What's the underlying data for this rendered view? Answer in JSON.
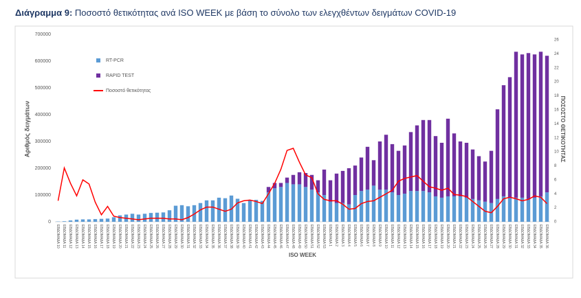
{
  "chart_data": {
    "type": "stacked_bar_line",
    "title_label": "Διάγραμμα 9:",
    "title": "Ποσοστό θετικότητας ανά ISO WEEK με βάση το σύνολο των ελεγχθέντων δειγμάτων COVID-19",
    "ylabel": "Αριθμός δειγμάτων",
    "y2label": "ΠΟΣΟΣΤΟ ΘΕΤΙΚΟΤΗΤΑΣ",
    "xlabel": "ISO WEEK",
    "categories": [
      "ΕΒΔΟΜΑΔΑ 10",
      "ΕΒΔΟΜΑΔΑ 11",
      "ΕΒΔΟΜΑΔΑ 12",
      "ΕΒΔΟΜΑΔΑ 13",
      "ΕΒΔΟΜΑΔΑ 14",
      "ΕΒΔΟΜΑΔΑ 15",
      "ΕΒΔΟΜΑΔΑ 16",
      "ΕΒΔΟΜΑΔΑ 17",
      "ΕΒΔΟΜΑΔΑ 18",
      "ΕΒΔΟΜΑΔΑ 19",
      "ΕΒΔΟΜΑΔΑ 20",
      "ΕΒΔΟΜΑΔΑ 21",
      "ΕΒΔΟΜΑΔΑ 22",
      "ΕΒΔΟΜΑΔΑ 23",
      "ΕΒΔΟΜΑΔΑ 24",
      "ΕΒΔΟΜΑΔΑ 25",
      "ΕΒΔΟΜΑΔΑ 26",
      "ΕΒΔΟΜΑΔΑ 27",
      "ΕΒΔΟΜΑΔΑ 28",
      "ΕΒΔΟΜΑΔΑ 29",
      "ΕΒΔΟΜΑΔΑ 30",
      "ΕΒΔΟΜΑΔΑ 31",
      "ΕΒΔΟΜΑΔΑ 32",
      "ΕΒΔΟΜΑΔΑ 33",
      "ΕΒΔΟΜΑΔΑ 34",
      "ΕΒΔΟΜΑΔΑ 35",
      "ΕΒΔΟΜΑΔΑ 36",
      "ΕΒΔΟΜΑΔΑ 37",
      "ΕΒΔΟΜΑΔΑ 38",
      "ΕΒΔΟΜΑΔΑ 39",
      "ΕΒΔΟΜΑΔΑ 40",
      "ΕΒΔΟΜΑΔΑ 41",
      "ΕΒΔΟΜΑΔΑ 42",
      "ΕΒΔΟΜΑΔΑ 43",
      "ΕΒΔΟΜΑΔΑ 44",
      "ΕΒΔΟΜΑΔΑ 45",
      "ΕΒΔΟΜΑΔΑ 46",
      "ΕΒΔΟΜΑΔΑ 47",
      "ΕΒΔΟΜΑΔΑ 48",
      "ΕΒΔΟΜΑΔΑ 49",
      "ΕΒΔΟΜΑΔΑ 50",
      "ΕΒΔΟΜΑΔΑ 51",
      "ΕΒΔΟΜΑΔΑ 52",
      "ΕΒΔΟΜΑΔΑ 53",
      "ΕΒΔΟΜΑΔΑ 1",
      "ΕΒΔΟΜΑΔΑ 2",
      "ΕΒΔΟΜΑΔΑ 3",
      "ΕΒΔΟΜΑΔΑ 4",
      "ΕΒΔΟΜΑΔΑ 5",
      "ΕΒΔΟΜΑΔΑ 6",
      "ΕΒΔΟΜΑΔΑ 7",
      "ΕΒΔΟΜΑΔΑ 8",
      "ΕΒΔΟΜΑΔΑ 9",
      "ΕΒΔΟΜΑΔΑ 10",
      "ΕΒΔΟΜΑΔΑ 11",
      "ΕΒΔΟΜΑΔΑ 12",
      "ΕΒΔΟΜΑΔΑ 13",
      "ΕΒΔΟΜΑΔΑ 14",
      "ΕΒΔΟΜΑΔΑ 15",
      "ΕΒΔΟΜΑΔΑ 16",
      "ΕΒΔΟΜΑΔΑ 17",
      "ΕΒΔΟΜΑΔΑ 18",
      "ΕΒΔΟΜΑΔΑ 19",
      "ΕΒΔΟΜΑΔΑ 20",
      "ΕΒΔΟΜΑΔΑ 21",
      "ΕΒΔΟΜΑΔΑ 22",
      "ΕΒΔΟΜΑΔΑ 23",
      "ΕΒΔΟΜΑΔΑ 24",
      "ΕΒΔΟΜΑΔΑ 25",
      "ΕΒΔΟΜΑΔΑ 26",
      "ΕΒΔΟΜΑΔΑ 27",
      "ΕΒΔΟΜΑΔΑ 28",
      "ΕΒΔΟΜΑΔΑ 29",
      "ΕΒΔΟΜΑΔΑ 30",
      "ΕΒΔΟΜΑΔΑ 31",
      "ΕΒΔΟΜΑΔΑ 32",
      "ΕΒΔΟΜΑΔΑ 33",
      "ΕΒΔΟΜΑΔΑ 34",
      "ΕΒΔΟΜΑΔΑ 35",
      "ΕΒΔΟΜΑΔΑ 36"
    ],
    "series": [
      {
        "name": "RT-PCR",
        "color": "#5b9bd5",
        "values": [
          1000,
          2000,
          5000,
          8000,
          9000,
          9000,
          10000,
          11000,
          12000,
          17000,
          24000,
          27000,
          30000,
          27000,
          30000,
          33000,
          34000,
          35000,
          43000,
          60000,
          62000,
          58000,
          62000,
          70000,
          80000,
          80000,
          90000,
          88000,
          98000,
          86000,
          70000,
          80000,
          82000,
          78000,
          110000,
          125000,
          130000,
          145000,
          140000,
          140000,
          130000,
          120000,
          110000,
          100000,
          75000,
          70000,
          70000,
          65000,
          100000,
          115000,
          120000,
          135000,
          120000,
          120000,
          110000,
          100000,
          105000,
          115000,
          115000,
          115000,
          110000,
          95000,
          90000,
          95000,
          95000,
          95000,
          90000,
          85000,
          80000,
          75000,
          70000,
          85000,
          95000,
          90000,
          90000,
          90000,
          85000,
          90000,
          95000,
          110000
        ]
      },
      {
        "name": "RAPID TEST",
        "color": "#7030a0",
        "values": [
          0,
          0,
          0,
          0,
          0,
          0,
          0,
          0,
          0,
          0,
          0,
          0,
          0,
          0,
          0,
          0,
          0,
          0,
          0,
          0,
          0,
          0,
          0,
          0,
          0,
          0,
          0,
          0,
          0,
          0,
          0,
          0,
          0,
          0,
          20000,
          20000,
          15000,
          20000,
          35000,
          45000,
          52000,
          55000,
          45000,
          95000,
          80000,
          110000,
          120000,
          135000,
          110000,
          125000,
          160000,
          95000,
          180000,
          205000,
          180000,
          165000,
          180000,
          220000,
          245000,
          265000,
          270000,
          225000,
          205000,
          290000,
          235000,
          205000,
          205000,
          185000,
          165000,
          150000,
          195000,
          335000,
          415000,
          450000,
          545000,
          535000,
          545000,
          535000,
          540000,
          510000
        ]
      },
      {
        "name": "Ποσοστό θετικότητας",
        "color": "#ff0000",
        "axis": "y2",
        "values": [
          3.0,
          7.7,
          5.5,
          3.7,
          6.0,
          5.4,
          2.8,
          1.0,
          2.2,
          0.8,
          0.6,
          0.5,
          0.4,
          0.3,
          0.4,
          0.5,
          0.5,
          0.5,
          0.4,
          0.4,
          0.3,
          0.6,
          1.1,
          1.7,
          2.1,
          2.1,
          1.8,
          1.5,
          1.8,
          2.7,
          3.0,
          3.1,
          2.9,
          2.6,
          4.0,
          5.5,
          7.5,
          10.2,
          10.5,
          8.5,
          6.7,
          6.3,
          4.0,
          3.2,
          3.0,
          3.0,
          2.5,
          1.8,
          1.9,
          2.6,
          2.9,
          3.0,
          3.5,
          4.0,
          4.5,
          5.8,
          6.2,
          6.4,
          6.6,
          5.8,
          5.0,
          4.8,
          4.5,
          4.8,
          3.9,
          3.8,
          3.6,
          2.9,
          2.2,
          1.5,
          1.3,
          2.2,
          3.3,
          3.5,
          3.3,
          3.0,
          3.2,
          3.7,
          3.5,
          2.6
        ]
      }
    ],
    "ylim": [
      0,
      700000
    ],
    "yticks": [
      0,
      100000,
      200000,
      300000,
      400000,
      500000,
      600000,
      700000
    ],
    "y2lim": [
      0,
      26
    ],
    "y2ticks": [
      0,
      2,
      4,
      6,
      8,
      10,
      12,
      14,
      16,
      18,
      20,
      22,
      24,
      26
    ],
    "grid": false
  }
}
